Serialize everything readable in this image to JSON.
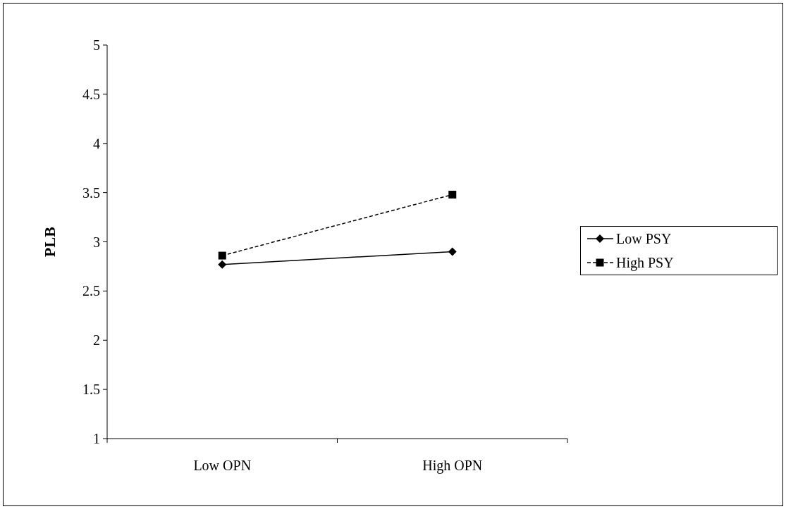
{
  "chart_data": {
    "type": "line",
    "ylabel": "PLB",
    "categories": [
      "Low OPN",
      "High OPN"
    ],
    "ylim": [
      1,
      5
    ],
    "yticks": [
      1,
      1.5,
      2,
      2.5,
      3,
      3.5,
      4,
      4.5,
      5
    ],
    "legend": "right",
    "series": [
      {
        "name": "Low PSY",
        "color": "#000000",
        "values": [
          2.77,
          2.9
        ],
        "marker": "diamond",
        "line_style": "solid"
      },
      {
        "name": "High PSY",
        "color": "#000000",
        "values": [
          2.86,
          3.48
        ],
        "marker": "square",
        "line_style": "dashed"
      }
    ]
  }
}
